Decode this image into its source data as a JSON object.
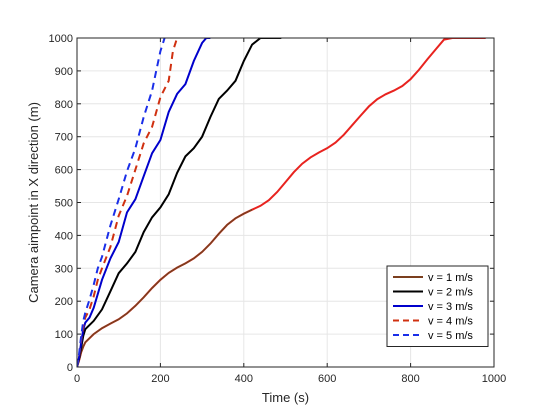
{
  "chart_data": {
    "type": "line",
    "xlabel": "Time (s)",
    "ylabel": "Camera aimpoint in X direction (m)",
    "xlim": [
      0,
      1000
    ],
    "ylim": [
      0,
      1000
    ],
    "xticks": [
      0,
      200,
      400,
      600,
      800,
      1000
    ],
    "yticks": [
      0,
      100,
      200,
      300,
      400,
      500,
      600,
      700,
      800,
      900,
      1000
    ],
    "grid": true,
    "legend_position": "bottom-right",
    "series": [
      {
        "name": "v = 1 m/s",
        "color": "#7b3f1e",
        "overlay_color": "#e8231f",
        "dash": "solid",
        "x": [
          0,
          5,
          10,
          15,
          20,
          40,
          60,
          80,
          100,
          120,
          140,
          160,
          180,
          200,
          220,
          240,
          260,
          280,
          300,
          320,
          340,
          360,
          380,
          400,
          420,
          440,
          460,
          480,
          500,
          520,
          540,
          560,
          580,
          600,
          620,
          640,
          660,
          680,
          700,
          720,
          740,
          760,
          780,
          800,
          820,
          840,
          860,
          880,
          900,
          920,
          940,
          960,
          980
        ],
        "y": [
          0,
          20,
          45,
          62,
          75,
          100,
          118,
          132,
          145,
          163,
          186,
          212,
          240,
          265,
          286,
          302,
          315,
          330,
          350,
          375,
          405,
          432,
          452,
          466,
          478,
          490,
          507,
          532,
          562,
          592,
          618,
          637,
          652,
          665,
          682,
          706,
          735,
          764,
          792,
          814,
          829,
          840,
          854,
          875,
          903,
          935,
          965,
          995,
          1000,
          1000,
          1000,
          1000,
          1000
        ]
      },
      {
        "name": "v = 2 m/s",
        "color": "#000000",
        "dash": "solid",
        "x": [
          0,
          5,
          10,
          15,
          20,
          40,
          60,
          80,
          100,
          120,
          140,
          160,
          180,
          200,
          220,
          240,
          260,
          280,
          300,
          320,
          340,
          360,
          380,
          400,
          420,
          440,
          460,
          480,
          490
        ],
        "y": [
          0,
          25,
          60,
          95,
          115,
          140,
          175,
          230,
          285,
          315,
          350,
          410,
          455,
          485,
          525,
          590,
          640,
          665,
          700,
          760,
          815,
          840,
          870,
          930,
          980,
          1000,
          1000,
          1000,
          1000
        ]
      },
      {
        "name": "v = 3 m/s",
        "color": "#0000cc",
        "dash": "solid",
        "x": [
          0,
          5,
          10,
          15,
          20,
          30,
          40,
          60,
          80,
          100,
          120,
          140,
          160,
          180,
          200,
          220,
          240,
          260,
          280,
          300,
          310,
          320
        ],
        "y": [
          0,
          30,
          75,
          115,
          135,
          150,
          180,
          265,
          330,
          380,
          470,
          510,
          580,
          650,
          690,
          775,
          830,
          860,
          930,
          985,
          1000,
          1000
        ]
      },
      {
        "name": "v = 4 m/s",
        "color": "#d03010",
        "dash": "dashed",
        "x": [
          0,
          5,
          10,
          15,
          20,
          30,
          40,
          50,
          60,
          80,
          100,
          120,
          140,
          160,
          180,
          200,
          220,
          230,
          240
        ],
        "y": [
          0,
          35,
          85,
          125,
          150,
          175,
          215,
          265,
          300,
          365,
          460,
          520,
          600,
          680,
          730,
          820,
          870,
          960,
          1000
        ]
      },
      {
        "name": "v = 5 m/s",
        "color": "#1a2ee8",
        "dash": "dashed",
        "x": [
          0,
          5,
          10,
          15,
          20,
          30,
          40,
          50,
          60,
          80,
          100,
          120,
          140,
          160,
          180,
          190,
          200,
          210
        ],
        "y": [
          0,
          40,
          95,
          140,
          165,
          205,
          250,
          300,
          335,
          430,
          510,
          595,
          665,
          760,
          840,
          900,
          960,
          1000
        ]
      }
    ]
  }
}
